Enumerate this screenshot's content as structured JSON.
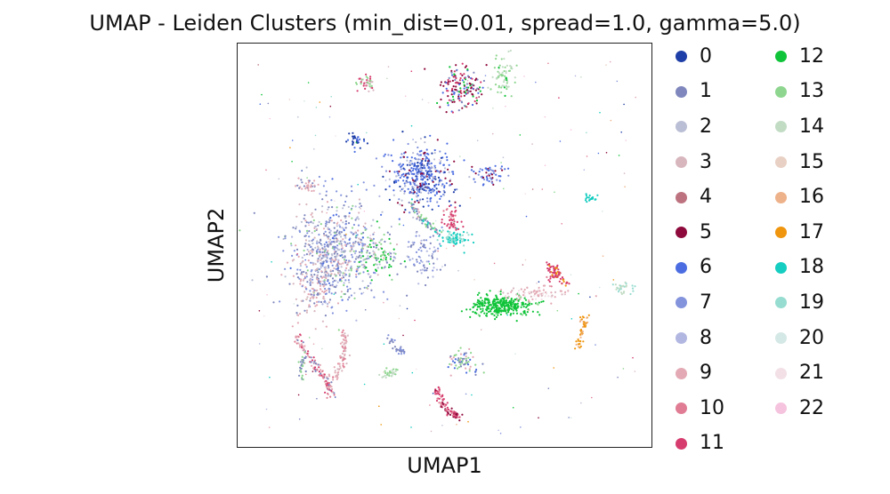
{
  "chart_data": {
    "type": "scatter",
    "title": "UMAP - Leiden Clusters (min_dist=0.01, spread=1.0, gamma=5.0)",
    "xlabel": "UMAP1",
    "ylabel": "UMAP2",
    "ticks": "none",
    "grid": false,
    "legend_placement": "right",
    "legend_columns": 2,
    "series": [
      {
        "name": "0",
        "color": "#1f3fa8"
      },
      {
        "name": "1",
        "color": "#7f87bd"
      },
      {
        "name": "2",
        "color": "#bbbfd5"
      },
      {
        "name": "3",
        "color": "#d8b6be"
      },
      {
        "name": "4",
        "color": "#bd737f"
      },
      {
        "name": "5",
        "color": "#8e0a3c"
      },
      {
        "name": "6",
        "color": "#4b6de1"
      },
      {
        "name": "7",
        "color": "#8393dc"
      },
      {
        "name": "8",
        "color": "#b2b7e1"
      },
      {
        "name": "9",
        "color": "#e3a9b4"
      },
      {
        "name": "10",
        "color": "#e07c93"
      },
      {
        "name": "11",
        "color": "#d63c6e"
      },
      {
        "name": "12",
        "color": "#10c439"
      },
      {
        "name": "13",
        "color": "#8ed68f"
      },
      {
        "name": "14",
        "color": "#c2dcc4"
      },
      {
        "name": "15",
        "color": "#e9d0c4"
      },
      {
        "name": "16",
        "color": "#eeb28a"
      },
      {
        "name": "17",
        "color": "#ef950e"
      },
      {
        "name": "18",
        "color": "#15cdc0"
      },
      {
        "name": "19",
        "color": "#96dcd0"
      },
      {
        "name": "20",
        "color": "#d4e8e5"
      },
      {
        "name": "21",
        "color": "#f2e0e6"
      },
      {
        "name": "22",
        "color": "#f5c3de"
      }
    ]
  }
}
